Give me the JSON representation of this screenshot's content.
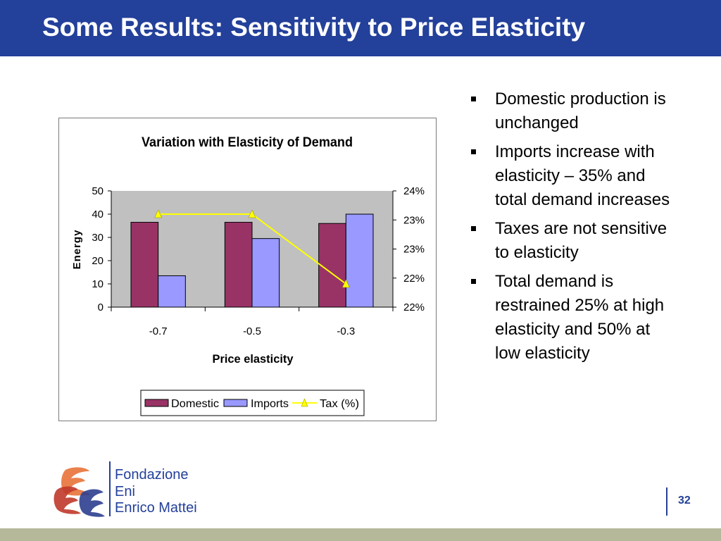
{
  "slide": {
    "title": "Some Results: Sensitivity to Price Elasticity",
    "page_number": "32"
  },
  "bullets": [
    "Domestic production is unchanged",
    "Imports increase with elasticity – 35% and total demand increases",
    "Taxes are not sensitive to elasticity",
    "Total demand is restrained 25% at high elasticity and 50% at low elasticity"
  ],
  "logo": {
    "line1": "Fondazione",
    "line2": "Eni",
    "line3": "Enrico Mattei"
  },
  "colors": {
    "title_bar": "#23409a",
    "domestic": "#993366",
    "imports": "#9999ff",
    "tax": "#ffff00",
    "plot_bg": "#c0c0c0",
    "footer": "#b5b99a"
  },
  "chart_data": {
    "type": "bar",
    "title": "Variation with Elasticity of Demand",
    "xlabel": "Price elasticity",
    "ylabel": "Energy",
    "categories": [
      "-0.7",
      "-0.5",
      "-0.3"
    ],
    "ylim": [
      0,
      50
    ],
    "yticks": [
      "0",
      "10",
      "20",
      "30",
      "40",
      "50"
    ],
    "y2lim": [
      21.5,
      24
    ],
    "y2ticks": [
      "22%",
      "22%",
      "23%",
      "23%",
      "24%"
    ],
    "series": [
      {
        "name": "Domestic",
        "type": "bar",
        "values": [
          36.5,
          36.5,
          36
        ]
      },
      {
        "name": "Imports",
        "type": "bar",
        "values": [
          13.5,
          29.5,
          40
        ]
      },
      {
        "name": "Tax (%)",
        "type": "line",
        "axis": "secondary",
        "values": [
          23.5,
          23.5,
          22
        ]
      }
    ],
    "legend": [
      "Domestic",
      "Imports",
      "Tax (%)"
    ],
    "legend_position": "bottom"
  }
}
